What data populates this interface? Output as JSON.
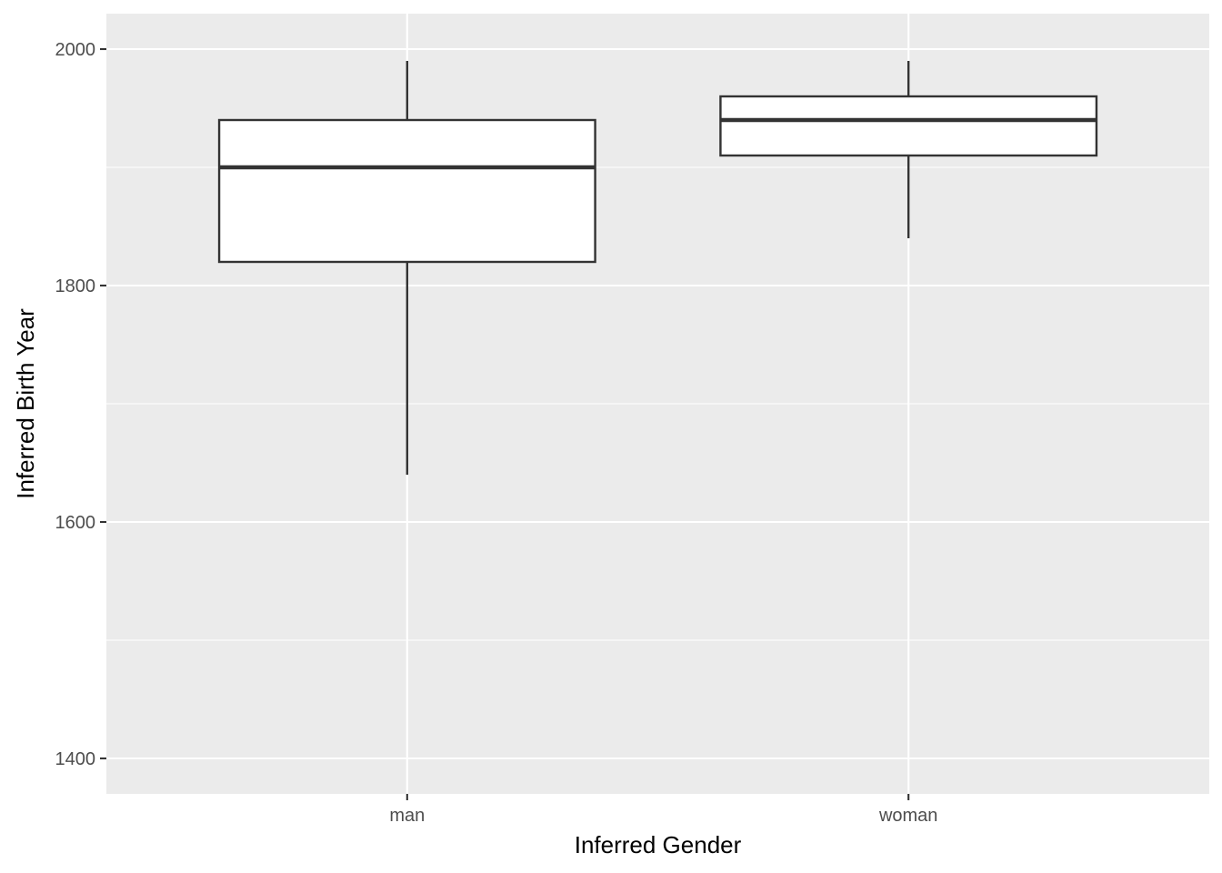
{
  "chart_data": {
    "type": "boxplot",
    "title": "",
    "xlabel": "Inferred Gender",
    "ylabel": "Inferred Birth Year",
    "categories": [
      "man",
      "woman"
    ],
    "boxes": [
      {
        "category": "man",
        "whisker_low": 1640,
        "q1": 1820,
        "median": 1900,
        "q3": 1940,
        "whisker_high": 1990
      },
      {
        "category": "woman",
        "whisker_low": 1840,
        "q1": 1910,
        "median": 1940,
        "q3": 1960,
        "whisker_high": 1990
      }
    ],
    "ylim": [
      1370,
      2030
    ],
    "y_ticks": [
      1400,
      1600,
      1800,
      2000
    ],
    "y_tick_labels": [
      "1400",
      "1600",
      "1800",
      "2000"
    ],
    "y_minor_ticks": [
      1500,
      1700,
      1900
    ],
    "grid": true,
    "legend": "none",
    "colors": {
      "panel": "#ebebeb",
      "grid": "#ffffff",
      "box_fill": "#ffffff",
      "box_stroke": "#333333",
      "tick_label": "#4d4d4d"
    }
  }
}
